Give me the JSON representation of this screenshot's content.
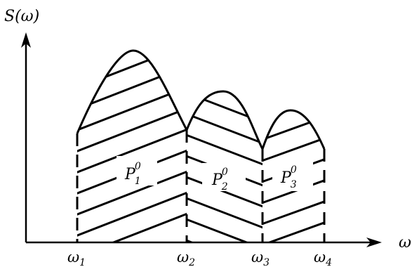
{
  "axes": {
    "y_label": "S(ω)",
    "x_label": "ω"
  },
  "x_ticks": [
    {
      "base": "ω",
      "sub": "1"
    },
    {
      "base": "ω",
      "sub": "2"
    },
    {
      "base": "ω",
      "sub": "3"
    },
    {
      "base": "ω",
      "sub": "4"
    }
  ],
  "regions": [
    {
      "base": "P",
      "sub": "1",
      "sup": "0"
    },
    {
      "base": "P",
      "sub": "2",
      "sup": "0"
    },
    {
      "base": "P",
      "sub": "3",
      "sup": "0"
    }
  ],
  "colors": {
    "ink": "#000000",
    "background": "#ffffff"
  }
}
